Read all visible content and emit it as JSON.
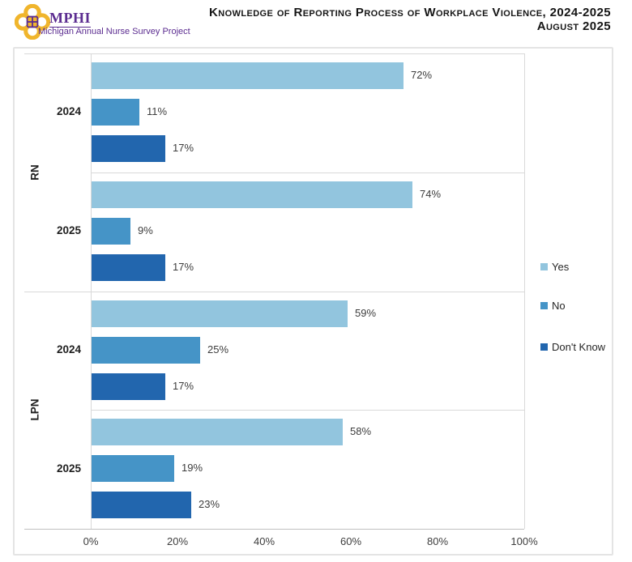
{
  "header": {
    "logo_text": "MPHI",
    "logo_subtitle": "Michigan Annual Nurse Survey Project",
    "title_line1": "Knowledge of Reporting Process of Workplace Violence, 2024-2025",
    "title_line2": "August 2025"
  },
  "colors": {
    "yes": "#92c5de",
    "no": "#4594c7",
    "dont_know": "#2266ae",
    "brand_purple": "#5b2c90",
    "brand_gold": "#f0b52c",
    "gridline": "#d9d9d9",
    "axis_line": "#c0c0c0"
  },
  "chart_data": {
    "type": "bar",
    "orientation": "horizontal",
    "title": "Knowledge of Reporting Process of Workplace Violence, 2024-2025",
    "subtitle": "August 2025",
    "value_suffix": "%",
    "xlim": [
      0,
      100
    ],
    "x_ticks": [
      "0%",
      "20%",
      "40%",
      "60%",
      "80%",
      "100%"
    ],
    "grid": "category-boundaries-only",
    "series": [
      "Yes",
      "No",
      "Don't Know"
    ],
    "series_colors": [
      "#92c5de",
      "#4594c7",
      "#2266ae"
    ],
    "groups": [
      {
        "label": "RN",
        "rows": [
          {
            "label": "2024",
            "values": [
              72,
              11,
              17
            ]
          },
          {
            "label": "2025",
            "values": [
              74,
              9,
              17
            ]
          }
        ]
      },
      {
        "label": "LPN",
        "rows": [
          {
            "label": "2024",
            "values": [
              59,
              25,
              17
            ]
          },
          {
            "label": "2025",
            "values": [
              58,
              19,
              23
            ]
          }
        ]
      }
    ],
    "legend": {
      "position": "right",
      "items": [
        "Yes",
        "No",
        "Don't Know"
      ]
    }
  }
}
